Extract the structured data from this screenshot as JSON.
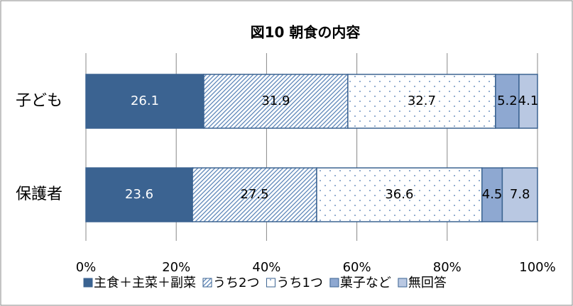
{
  "chart_data": {
    "type": "stacked_barh",
    "title": "図10 朝食の内容",
    "categories": [
      "子ども",
      "保護者"
    ],
    "series": [
      {
        "name": "主食＋主菜＋副菜",
        "color": "#3b6391",
        "fill": "solid",
        "values": [
          26.1,
          23.6
        ]
      },
      {
        "name": "うち2つ",
        "color": "#5a84b8",
        "fill": "hatch",
        "values": [
          31.9,
          27.5
        ]
      },
      {
        "name": "うち1つ",
        "color": "#6f93c2",
        "fill": "dots",
        "values": [
          32.7,
          36.6
        ]
      },
      {
        "name": "菓子など",
        "color": "#8ea8d1",
        "fill": "solid",
        "values": [
          5.2,
          4.5
        ]
      },
      {
        "name": "無回答",
        "color": "#b9c8e2",
        "fill": "solid",
        "values": [
          4.1,
          7.8
        ]
      }
    ],
    "xlim": [
      0,
      100
    ],
    "xticks": [
      {
        "value": 0,
        "label": "0%"
      },
      {
        "value": 20,
        "label": "20%"
      },
      {
        "value": 40,
        "label": "40%"
      },
      {
        "value": 60,
        "label": "60%"
      },
      {
        "value": 80,
        "label": "80%"
      },
      {
        "value": 100,
        "label": "100%"
      }
    ],
    "grid": true
  }
}
